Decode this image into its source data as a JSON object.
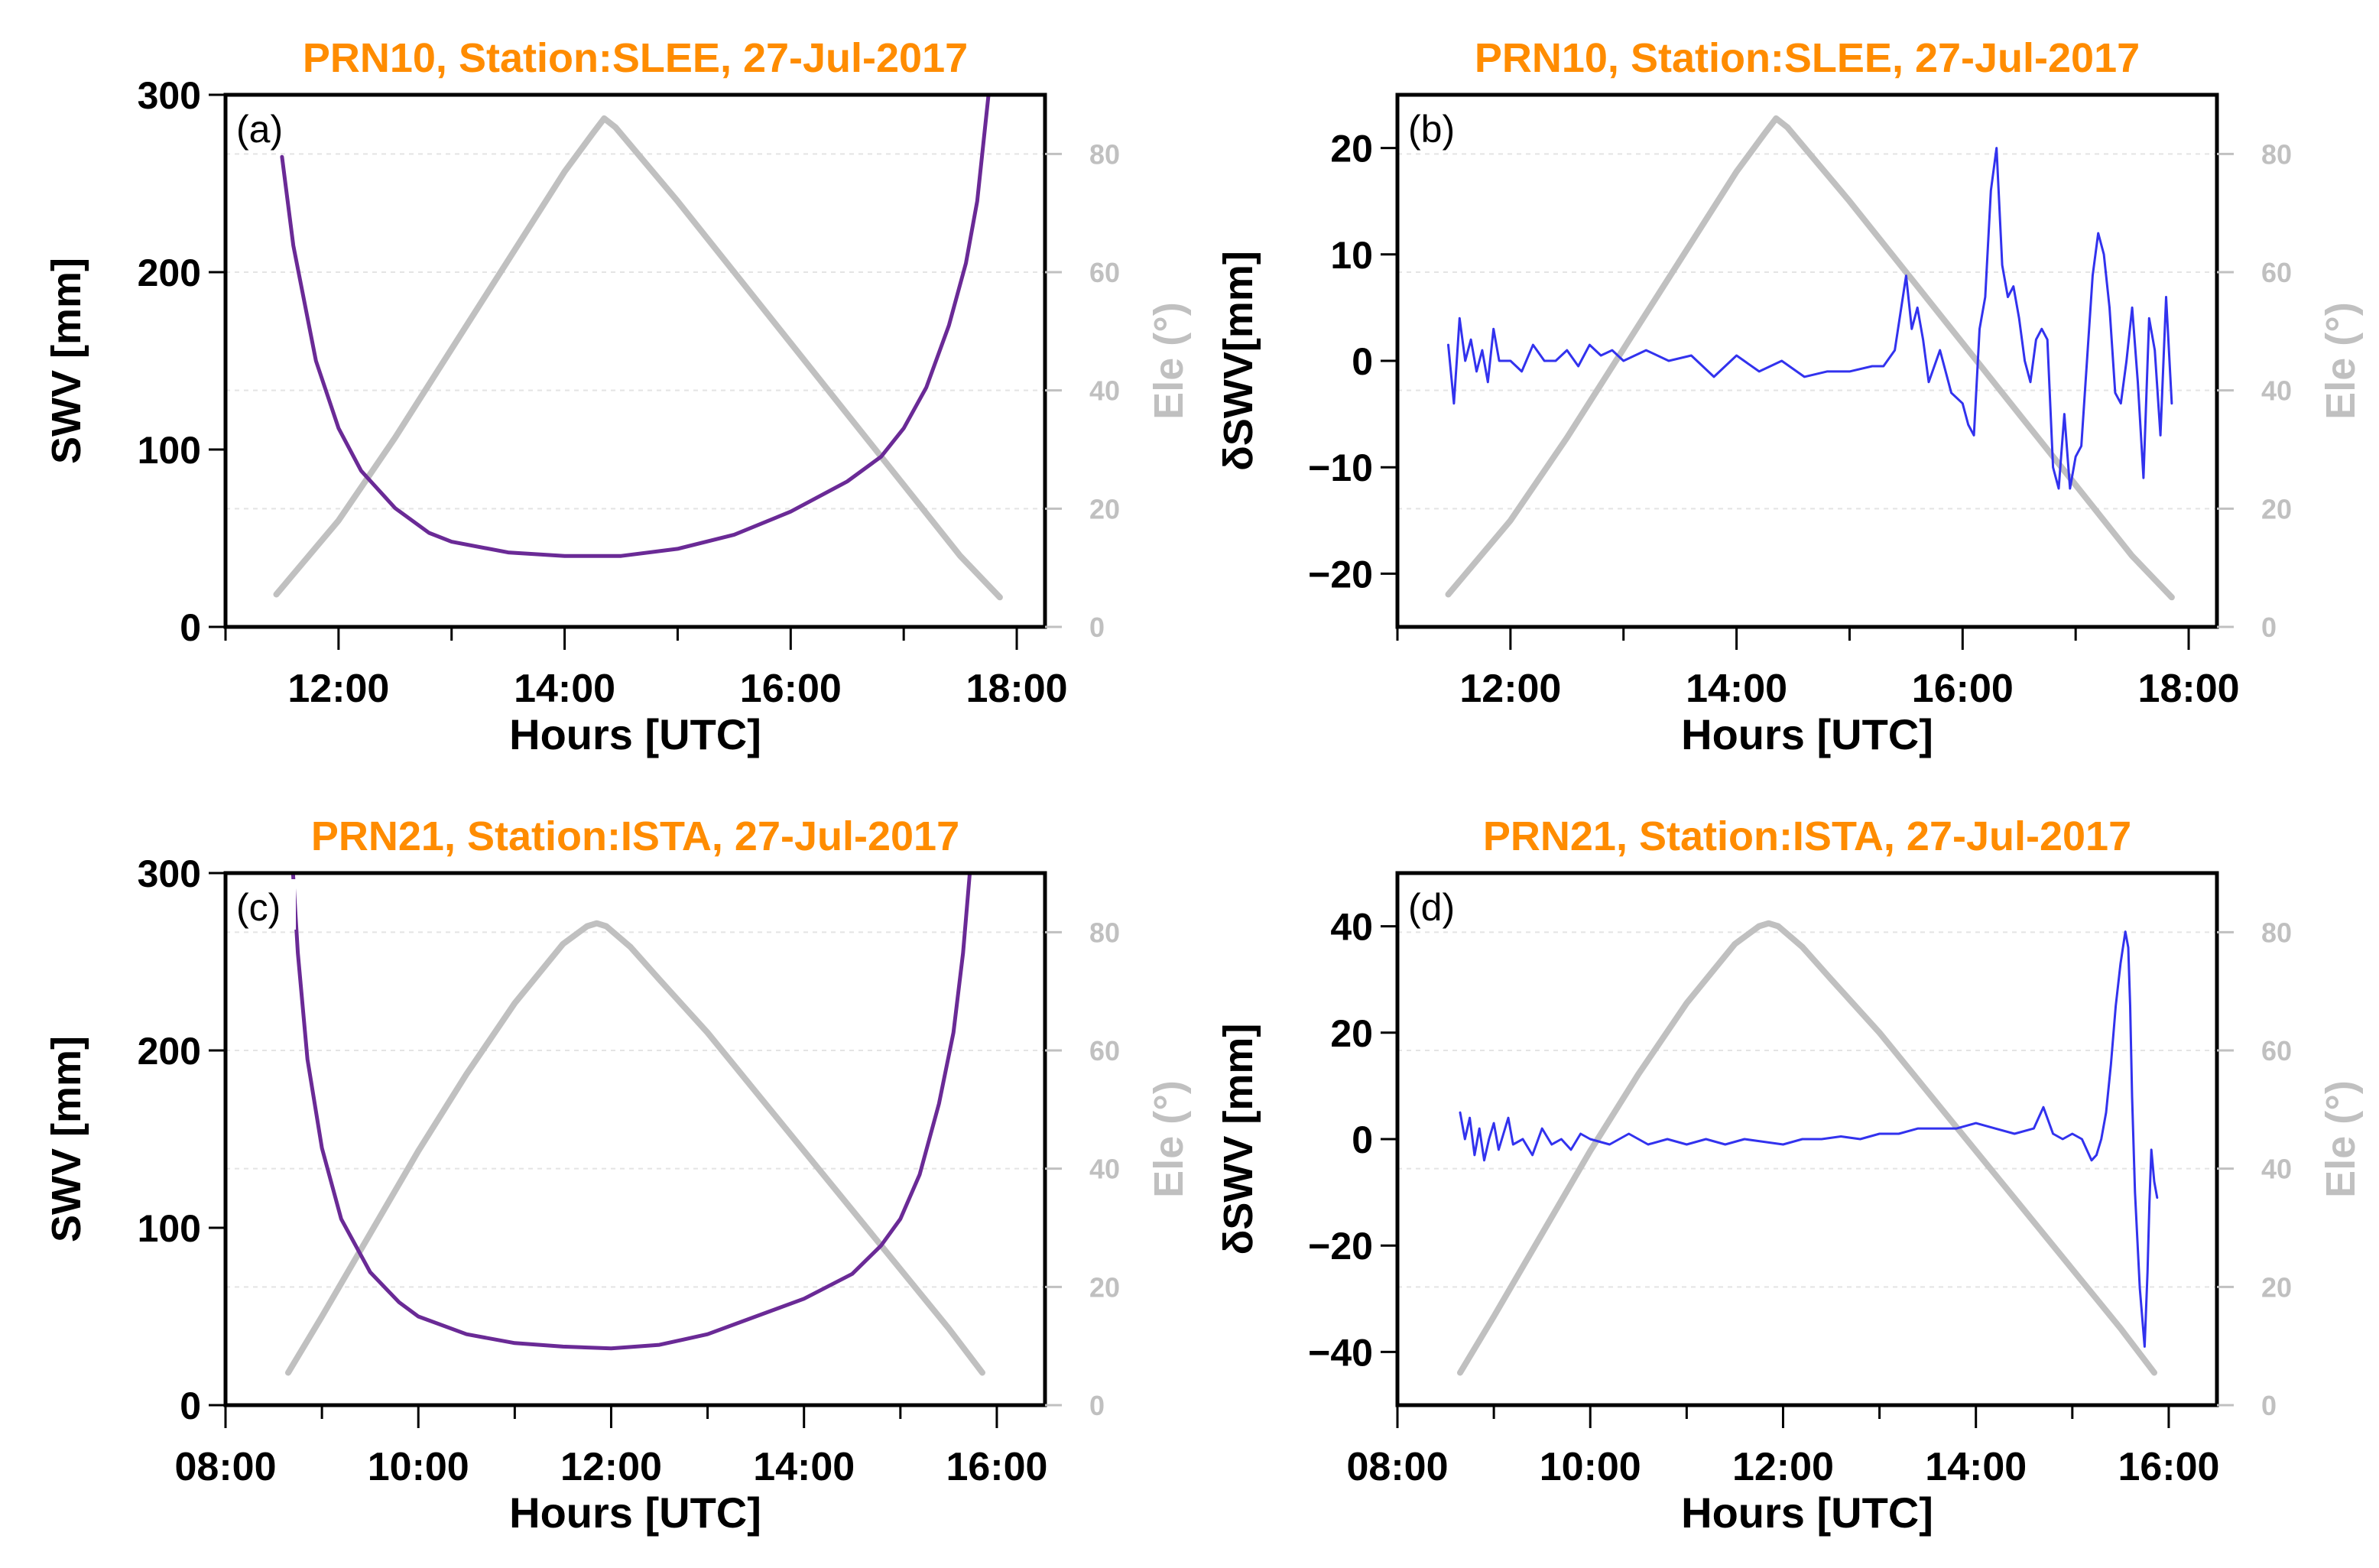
{
  "colors": {
    "swv": "#6a2a96",
    "dswv": "#3232ee",
    "elevation": "#c0c0c0",
    "title": "#ff8c00",
    "axis": "#000000",
    "grid": "#e4e4e4"
  },
  "chart_data": [
    {
      "id": "a",
      "type": "line",
      "panel_label": "(a)",
      "title": "PRN10, Station:SLEE, 27-Jul-2017",
      "xlabel": "Hours [UTC]",
      "ylabel": "SWV [mm]",
      "y2label": "Ele (°)",
      "xlim": [
        11.0,
        18.25
      ],
      "xticks": [
        12,
        14,
        16,
        18
      ],
      "xminor": [
        11,
        13,
        15,
        17
      ],
      "xtick_labels": [
        "12:00",
        "14:00",
        "16:00",
        "18:00"
      ],
      "ylim": [
        0,
        300
      ],
      "yticks": [
        0,
        100,
        200,
        300
      ],
      "ytick_labels": [
        "0",
        "100",
        "200",
        "300"
      ],
      "y2lim": [
        0,
        90
      ],
      "y2ticks": [
        0,
        20,
        40,
        60,
        80
      ],
      "y2tick_labels": [
        "0",
        "20",
        "40",
        "60",
        "80"
      ],
      "grid": true,
      "series": [
        {
          "role": "elevation",
          "axis": "y2",
          "width": 8,
          "x": [
            11.45,
            12.0,
            12.5,
            13.0,
            13.5,
            14.0,
            14.25,
            14.35,
            14.45,
            15.0,
            15.5,
            16.0,
            16.5,
            17.0,
            17.5,
            17.85
          ],
          "y": [
            5.5,
            18,
            32,
            47,
            62,
            77,
            83.5,
            86,
            84.5,
            72,
            60,
            48,
            36,
            24,
            12,
            5
          ]
        },
        {
          "role": "swv",
          "axis": "y",
          "width": 5,
          "x": [
            11.5,
            11.6,
            11.8,
            12.0,
            12.2,
            12.5,
            12.8,
            13.0,
            13.5,
            14.0,
            14.5,
            15.0,
            15.5,
            16.0,
            16.5,
            16.8,
            17.0,
            17.2,
            17.4,
            17.55,
            17.65,
            17.75
          ],
          "y": [
            265,
            215,
            150,
            112,
            88,
            67,
            53,
            48,
            42,
            40,
            40,
            44,
            52,
            65,
            82,
            96,
            112,
            135,
            170,
            205,
            240,
            300
          ]
        }
      ]
    },
    {
      "id": "b",
      "type": "line",
      "panel_label": "(b)",
      "title": "PRN10, Station:SLEE, 27-Jul-2017",
      "xlabel": "Hours [UTC]",
      "ylabel": "δSWV[mm]",
      "y2label": "Ele (°)",
      "xlim": [
        11.0,
        18.25
      ],
      "xticks": [
        12,
        14,
        16,
        18
      ],
      "xminor": [
        11,
        13,
        15,
        17
      ],
      "xtick_labels": [
        "12:00",
        "14:00",
        "16:00",
        "18:00"
      ],
      "ylim": [
        -25,
        25
      ],
      "yticks": [
        -20,
        -10,
        0,
        10,
        20
      ],
      "ytick_labels": [
        "−20",
        "−10",
        "0",
        "10",
        "20"
      ],
      "y2lim": [
        0,
        90
      ],
      "y2ticks": [
        0,
        20,
        40,
        60,
        80
      ],
      "y2tick_labels": [
        "0",
        "20",
        "40",
        "60",
        "80"
      ],
      "grid": true,
      "series": [
        {
          "role": "elevation",
          "axis": "y2",
          "width": 8,
          "x": [
            11.45,
            12.0,
            12.5,
            13.0,
            13.5,
            14.0,
            14.25,
            14.35,
            14.45,
            15.0,
            15.5,
            16.0,
            16.5,
            17.0,
            17.5,
            17.85
          ],
          "y": [
            5.5,
            18,
            32,
            47,
            62,
            77,
            83.5,
            86,
            84.5,
            72,
            60,
            48,
            36,
            24,
            12,
            5
          ]
        },
        {
          "role": "dswv",
          "axis": "y",
          "width": 3,
          "x": [
            11.45,
            11.5,
            11.55,
            11.6,
            11.65,
            11.7,
            11.75,
            11.8,
            11.85,
            11.9,
            12.0,
            12.1,
            12.2,
            12.3,
            12.4,
            12.5,
            12.6,
            12.7,
            12.8,
            12.9,
            13.0,
            13.2,
            13.4,
            13.6,
            13.8,
            14.0,
            14.2,
            14.4,
            14.6,
            14.8,
            15.0,
            15.2,
            15.3,
            15.4,
            15.5,
            15.55,
            15.6,
            15.65,
            15.7,
            15.8,
            15.9,
            16.0,
            16.05,
            16.1,
            16.15,
            16.2,
            16.25,
            16.3,
            16.35,
            16.4,
            16.45,
            16.5,
            16.55,
            16.6,
            16.65,
            16.7,
            16.75,
            16.8,
            16.85,
            16.9,
            16.95,
            17.0,
            17.05,
            17.1,
            17.15,
            17.2,
            17.25,
            17.3,
            17.35,
            17.4,
            17.45,
            17.5,
            17.55,
            17.6,
            17.65,
            17.7,
            17.75,
            17.8,
            17.85
          ],
          "y": [
            1.5,
            -4,
            4,
            0,
            2,
            -1,
            1,
            -2,
            3,
            0,
            0,
            -1,
            1.5,
            0,
            0,
            1,
            -0.5,
            1.5,
            0.5,
            1,
            0,
            1,
            0,
            0.5,
            -1.5,
            0.5,
            -1,
            0,
            -1.5,
            -1,
            -1,
            -0.5,
            -0.5,
            1,
            8,
            3,
            5,
            2,
            -2,
            1,
            -3,
            -4,
            -6,
            -7,
            3,
            6,
            16,
            20,
            9,
            6,
            7,
            4,
            0,
            -2,
            2,
            3,
            2,
            -10,
            -12,
            -5,
            -12,
            -9,
            -8,
            0,
            8,
            12,
            10,
            5,
            -3,
            -4,
            0,
            5,
            -2,
            -11,
            4,
            1,
            -7,
            6,
            -4
          ]
        }
      ]
    },
    {
      "id": "c",
      "type": "line",
      "panel_label": "(c)",
      "title": "PRN21, Station:ISTA, 27-Jul-2017",
      "xlabel": "Hours [UTC]",
      "ylabel": "SWV [mm]",
      "y2label": "Ele (°)",
      "xlim": [
        8.0,
        16.5
      ],
      "xticks": [
        8,
        10,
        12,
        14,
        16
      ],
      "xminor": [
        9,
        11,
        13,
        15
      ],
      "xtick_labels": [
        "08:00",
        "10:00",
        "12:00",
        "14:00",
        "16:00"
      ],
      "ylim": [
        0,
        300
      ],
      "yticks": [
        0,
        100,
        200,
        300
      ],
      "ytick_labels": [
        "0",
        "100",
        "200",
        "300"
      ],
      "y2lim": [
        0,
        90
      ],
      "y2ticks": [
        0,
        20,
        40,
        60,
        80
      ],
      "y2tick_labels": [
        "0",
        "20",
        "40",
        "60",
        "80"
      ],
      "grid": true,
      "series": [
        {
          "role": "elevation",
          "axis": "y2",
          "width": 8,
          "x": [
            8.65,
            9.0,
            9.5,
            10.0,
            10.5,
            11.0,
            11.5,
            11.75,
            11.85,
            11.95,
            12.2,
            12.5,
            13.0,
            13.5,
            14.0,
            14.5,
            15.0,
            15.5,
            15.85
          ],
          "y": [
            5.5,
            15,
            29,
            43,
            56,
            68,
            78,
            81,
            81.5,
            81,
            77.5,
            72,
            63,
            53,
            43,
            33,
            23,
            13,
            5.5
          ]
        },
        {
          "role": "swv",
          "axis": "y",
          "width": 5,
          "x": [
            8.7,
            8.75,
            8.85,
            9.0,
            9.2,
            9.5,
            9.8,
            10.0,
            10.5,
            11.0,
            11.5,
            12.0,
            12.5,
            13.0,
            13.5,
            14.0,
            14.5,
            14.8,
            15.0,
            15.2,
            15.4,
            15.55,
            15.65,
            15.72
          ],
          "y": [
            300,
            255,
            195,
            145,
            105,
            75,
            58,
            50,
            40,
            35,
            33,
            32,
            34,
            40,
            50,
            60,
            74,
            90,
            105,
            130,
            170,
            210,
            255,
            300
          ]
        }
      ]
    },
    {
      "id": "d",
      "type": "line",
      "panel_label": "(d)",
      "title": "PRN21, Station:ISTA, 27-Jul-2017",
      "xlabel": "Hours [UTC]",
      "ylabel": "δSWV [mm]",
      "y2label": "Ele (°)",
      "xlim": [
        8.0,
        16.5
      ],
      "xticks": [
        8,
        10,
        12,
        14,
        16
      ],
      "xminor": [
        9,
        11,
        13,
        15
      ],
      "xtick_labels": [
        "08:00",
        "10:00",
        "12:00",
        "14:00",
        "16:00"
      ],
      "ylim": [
        -50,
        50
      ],
      "yticks": [
        -40,
        -20,
        0,
        20,
        40
      ],
      "ytick_labels": [
        "−40",
        "−20",
        "0",
        "20",
        "40"
      ],
      "y2lim": [
        0,
        90
      ],
      "y2ticks": [
        0,
        20,
        40,
        60,
        80
      ],
      "y2tick_labels": [
        "0",
        "20",
        "40",
        "60",
        "80"
      ],
      "grid": true,
      "series": [
        {
          "role": "elevation",
          "axis": "y2",
          "width": 8,
          "x": [
            8.65,
            9.0,
            9.5,
            10.0,
            10.5,
            11.0,
            11.5,
            11.75,
            11.85,
            11.95,
            12.2,
            12.5,
            13.0,
            13.5,
            14.0,
            14.5,
            15.0,
            15.5,
            15.85
          ],
          "y": [
            5.5,
            15,
            29,
            43,
            56,
            68,
            78,
            81,
            81.5,
            81,
            77.5,
            72,
            63,
            53,
            43,
            33,
            23,
            13,
            5.5
          ]
        },
        {
          "role": "dswv",
          "axis": "y",
          "width": 3,
          "x": [
            8.65,
            8.7,
            8.75,
            8.8,
            8.85,
            8.9,
            8.95,
            9.0,
            9.05,
            9.1,
            9.15,
            9.2,
            9.3,
            9.4,
            9.5,
            9.6,
            9.7,
            9.8,
            9.9,
            10.0,
            10.2,
            10.4,
            10.6,
            10.8,
            11.0,
            11.2,
            11.4,
            11.6,
            11.8,
            12.0,
            12.2,
            12.4,
            12.6,
            12.8,
            13.0,
            13.2,
            13.4,
            13.6,
            13.8,
            14.0,
            14.2,
            14.4,
            14.6,
            14.7,
            14.8,
            14.9,
            15.0,
            15.1,
            15.15,
            15.2,
            15.25,
            15.3,
            15.35,
            15.4,
            15.45,
            15.5,
            15.55,
            15.58,
            15.6,
            15.62,
            15.65,
            15.7,
            15.75,
            15.78,
            15.8,
            15.82,
            15.85,
            15.88
          ],
          "y": [
            5,
            0,
            4,
            -3,
            2,
            -4,
            0,
            3,
            -2,
            1,
            4,
            -1,
            0,
            -3,
            2,
            -1,
            0,
            -2,
            1,
            0,
            -1,
            1,
            -1,
            0,
            -1,
            0,
            -1,
            0,
            -0.5,
            -1,
            0,
            0,
            0.5,
            0,
            1,
            1,
            2,
            2,
            2,
            3,
            2,
            1,
            2,
            6,
            1,
            0,
            1,
            0,
            -2,
            -4,
            -3,
            0,
            5,
            14,
            25,
            33,
            39,
            36,
            25,
            8,
            -10,
            -28,
            -39,
            -25,
            -12,
            -2,
            -8,
            -11
          ]
        }
      ]
    }
  ]
}
